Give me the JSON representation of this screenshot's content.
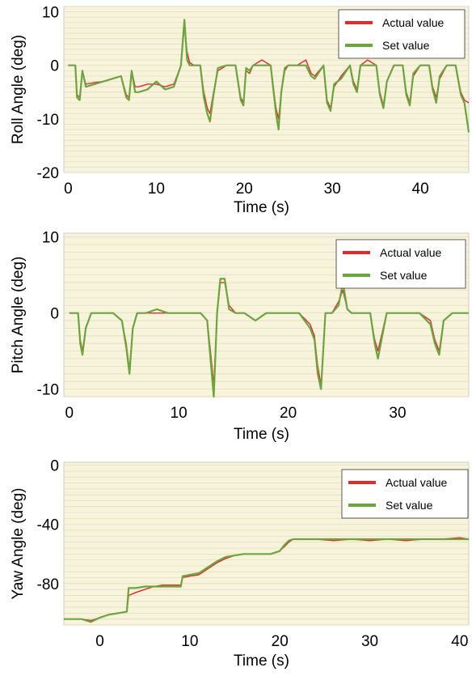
{
  "colors": {
    "plot_bg": "#f7f3dc",
    "grid": "#e6dfb8",
    "actual": "#e8272a",
    "set": "#6aa63b",
    "frame": "#cccccc"
  },
  "chart_data": [
    {
      "type": "line",
      "xlabel": "Time (s)",
      "ylabel": "Roll Angle (deg)",
      "xlim": [
        -0.5,
        45.5
      ],
      "ylim": [
        -20,
        11
      ],
      "xticks": [
        0,
        10,
        20,
        30,
        40
      ],
      "yticks": [
        10,
        0,
        -10,
        -20
      ],
      "grid": true,
      "legend_position": "top-right",
      "series": [
        {
          "name": "Actual value",
          "color_key": "actual",
          "x": [
            0,
            0.8,
            1.0,
            1.3,
            1.6,
            2.0,
            3,
            4,
            5,
            6,
            6.6,
            6.9,
            7.2,
            7.6,
            8,
            9,
            10,
            11,
            12,
            12.8,
            13.2,
            13.5,
            13.8,
            14.3,
            15,
            15.4,
            15.8,
            16.1,
            16.5,
            17,
            18,
            19,
            19.6,
            19.9,
            20.2,
            20.6,
            21,
            22,
            23,
            23.6,
            23.9,
            24.2,
            24.6,
            25,
            26,
            27,
            27.6,
            28,
            29,
            29.4,
            29.8,
            30.2,
            31,
            32,
            32.4,
            32.8,
            33.2,
            34,
            35,
            35.4,
            35.8,
            36.2,
            37,
            38,
            38.4,
            38.8,
            39.2,
            40,
            41,
            41.4,
            41.8,
            42.2,
            43,
            44,
            44.6,
            45,
            45.5
          ],
          "y": [
            0,
            0,
            -5.5,
            -6.0,
            -1.0,
            -3.5,
            -3.2,
            -3.0,
            -2.5,
            -2.0,
            -5.5,
            -6.0,
            -1.0,
            -4.0,
            -4.0,
            -3.5,
            -3.5,
            -4.0,
            -3.5,
            0,
            7.5,
            2.5,
            0.5,
            0,
            0,
            -5.0,
            -8.0,
            -9.0,
            -5.0,
            -1.0,
            0,
            0,
            -6.0,
            -7.0,
            -1.0,
            -1.5,
            0,
            1.0,
            0,
            -8.0,
            -10.0,
            -5.0,
            -1.0,
            0,
            0,
            1.0,
            -1.5,
            -2.0,
            0,
            -6.5,
            -8.0,
            -4.0,
            -2.0,
            0,
            -3.0,
            -4.5,
            0,
            1.0,
            0,
            -5.0,
            -7.5,
            -3.0,
            0,
            0,
            -5.0,
            -7.0,
            -2.0,
            0,
            0,
            -4.0,
            -6.0,
            -2.5,
            0,
            0,
            -5.0,
            -6.5,
            -7.0
          ]
        },
        {
          "name": "Set value",
          "color_key": "set",
          "x": [
            0,
            0.8,
            1.0,
            1.3,
            1.6,
            2.0,
            3,
            4,
            5,
            6,
            6.6,
            6.9,
            7.2,
            7.6,
            8,
            9,
            10,
            11,
            12,
            12.8,
            13.2,
            13.5,
            13.8,
            14.3,
            15,
            15.4,
            15.8,
            16.1,
            16.5,
            17,
            18,
            19,
            19.6,
            19.9,
            20.2,
            20.6,
            21,
            22,
            23,
            23.6,
            23.9,
            24.2,
            24.6,
            25,
            26,
            27,
            27.6,
            28,
            29,
            29.4,
            29.8,
            30.2,
            31,
            32,
            32.4,
            32.8,
            33.2,
            34,
            35,
            35.4,
            35.8,
            36.2,
            37,
            38,
            38.4,
            38.8,
            39.2,
            40,
            41,
            41.4,
            41.8,
            42.2,
            43,
            44,
            44.6,
            45,
            45.5
          ],
          "y": [
            0,
            0,
            -6.0,
            -6.5,
            -1.0,
            -4.0,
            -3.5,
            -3.0,
            -2.5,
            -2.0,
            -6.0,
            -6.5,
            -1.0,
            -5.0,
            -5.0,
            -4.5,
            -3.0,
            -4.5,
            -4.0,
            0,
            8.5,
            1.0,
            0,
            0,
            0,
            -6.0,
            -9.0,
            -10.5,
            -5.5,
            -0.5,
            0,
            0,
            -6.5,
            -7.5,
            -0.5,
            -1.0,
            0,
            0,
            0,
            -9.0,
            -12.0,
            -5.0,
            -0.5,
            0,
            0,
            0,
            -2.0,
            -2.5,
            0,
            -7.0,
            -8.5,
            -3.5,
            -2.5,
            0,
            -3.5,
            -5.0,
            0,
            0,
            0,
            -5.5,
            -8.0,
            -3.0,
            0,
            0,
            -5.5,
            -7.5,
            -1.5,
            0,
            0,
            -4.5,
            -7.0,
            -2.0,
            0,
            0,
            -5.5,
            -7.0,
            -12.5
          ]
        }
      ]
    },
    {
      "type": "line",
      "xlabel": "Time (s)",
      "ylabel": "Pitch Angle (deg)",
      "xlim": [
        -0.5,
        36.5
      ],
      "ylim": [
        -11,
        10.5
      ],
      "xticks": [
        0,
        10,
        20,
        30
      ],
      "yticks": [
        10,
        0,
        -10
      ],
      "grid": true,
      "legend_position": "top-right",
      "series": [
        {
          "name": "Actual value",
          "color_key": "actual",
          "x": [
            0,
            0.8,
            1.0,
            1.2,
            1.5,
            2,
            3,
            4,
            4.8,
            5.2,
            5.5,
            5.8,
            6.2,
            7,
            8,
            9,
            10,
            11,
            12,
            12.6,
            12.9,
            13.2,
            13.5,
            13.8,
            14.2,
            14.6,
            15.2,
            16,
            17,
            18,
            19,
            20,
            21,
            22,
            22.4,
            22.7,
            23,
            23.4,
            24,
            24.6,
            25.0,
            25.4,
            25.8,
            26.5,
            27.5,
            27.9,
            28.2,
            28.6,
            29,
            30,
            31,
            32,
            33,
            33.4,
            33.8,
            34.2,
            35,
            36,
            36.5
          ],
          "y": [
            0,
            0,
            -3.5,
            -5.0,
            -2.0,
            0,
            0,
            0,
            -1.0,
            -4.0,
            -7.5,
            -2.0,
            0,
            0,
            0,
            0,
            0,
            0,
            0,
            -1.0,
            -5.0,
            -9.5,
            0,
            4.0,
            4.0,
            1.0,
            0,
            0,
            -1.0,
            0,
            0,
            0,
            0,
            -1.5,
            -3.0,
            -7.0,
            -9.5,
            0,
            0,
            1.5,
            3.0,
            0.5,
            0,
            0,
            0,
            -3.5,
            -5.0,
            -2.5,
            0,
            0,
            0,
            0,
            -1.0,
            -3.5,
            -5.0,
            -1.0,
            0,
            0,
            0
          ]
        },
        {
          "name": "Set value",
          "color_key": "set",
          "x": [
            0,
            0.8,
            1.0,
            1.2,
            1.5,
            2,
            3,
            4,
            4.8,
            5.2,
            5.5,
            5.8,
            6.2,
            7,
            8,
            9,
            10,
            11,
            12,
            12.6,
            12.9,
            13.2,
            13.5,
            13.8,
            14.2,
            14.6,
            15.2,
            16,
            17,
            18,
            19,
            20,
            21,
            22,
            22.4,
            22.7,
            23,
            23.4,
            24,
            24.6,
            25.0,
            25.4,
            25.8,
            26.5,
            27.5,
            27.9,
            28.2,
            28.6,
            29,
            30,
            31,
            32,
            33,
            33.4,
            33.8,
            34.2,
            35,
            36,
            36.5
          ],
          "y": [
            0,
            0,
            -4.0,
            -5.5,
            -2.0,
            0,
            0,
            0,
            -1.0,
            -4.5,
            -8.0,
            -2.0,
            0,
            0,
            0.5,
            0,
            0,
            0,
            0,
            -1.0,
            -6.0,
            -11.0,
            0,
            4.5,
            4.5,
            0.5,
            0,
            0,
            -1.0,
            0,
            0,
            0,
            0,
            -2.0,
            -3.5,
            -8.0,
            -10.0,
            0,
            0,
            1.0,
            4.0,
            0.5,
            0,
            0,
            0,
            -4.0,
            -6.0,
            -3.0,
            0,
            0,
            0,
            0,
            -1.5,
            -4.0,
            -5.5,
            -1.0,
            0,
            0,
            0
          ]
        }
      ]
    },
    {
      "type": "line",
      "xlabel": "Time (s)",
      "ylabel": "Yaw Angle (deg)",
      "xlim": [
        -4,
        41
      ],
      "ylim": [
        -108,
        2
      ],
      "xticks": [
        0,
        10,
        20,
        30,
        40
      ],
      "yticks": [
        0,
        -40,
        -80
      ],
      "grid": true,
      "legend_position": "top-right",
      "series": [
        {
          "name": "Actual value",
          "color_key": "actual",
          "x": [
            -4,
            -2,
            -1,
            0,
            1,
            2,
            3,
            3.2,
            4,
            5,
            6,
            7,
            8,
            9,
            9.2,
            10,
            11,
            12,
            13,
            14,
            15,
            16,
            17,
            18,
            19,
            20,
            20.5,
            21,
            21.5,
            22,
            24,
            26,
            28,
            30,
            32,
            34,
            36,
            38,
            40,
            41
          ],
          "y": [
            -104,
            -104,
            -105,
            -103,
            -101,
            -100,
            -99,
            -88,
            -86,
            -84,
            -82,
            -81,
            -81,
            -81,
            -76,
            -75,
            -74,
            -70,
            -66,
            -63,
            -61,
            -60,
            -60,
            -60,
            -60,
            -58,
            -55,
            -52,
            -50,
            -50,
            -50,
            -51,
            -50,
            -51,
            -50,
            -51,
            -50,
            -50,
            -49,
            -50
          ]
        },
        {
          "name": "Set value",
          "color_key": "set",
          "x": [
            -4,
            -2,
            -1,
            0,
            1,
            2,
            3,
            3.2,
            4,
            5,
            6,
            7,
            8,
            9,
            9.2,
            10,
            11,
            12,
            13,
            14,
            15,
            16,
            17,
            18,
            19,
            20,
            20.5,
            21,
            21.5,
            22,
            24,
            26,
            28,
            30,
            32,
            34,
            36,
            38,
            40,
            41
          ],
          "y": [
            -104,
            -104,
            -106,
            -103,
            -101,
            -100,
            -99,
            -83,
            -83,
            -82,
            -82,
            -82,
            -82,
            -82,
            -75,
            -74,
            -73,
            -69,
            -65,
            -62,
            -61,
            -60,
            -60,
            -60,
            -60,
            -58,
            -54,
            -51,
            -50,
            -50,
            -50,
            -50,
            -50,
            -50,
            -50,
            -50,
            -50,
            -50,
            -50,
            -50
          ]
        }
      ]
    }
  ]
}
